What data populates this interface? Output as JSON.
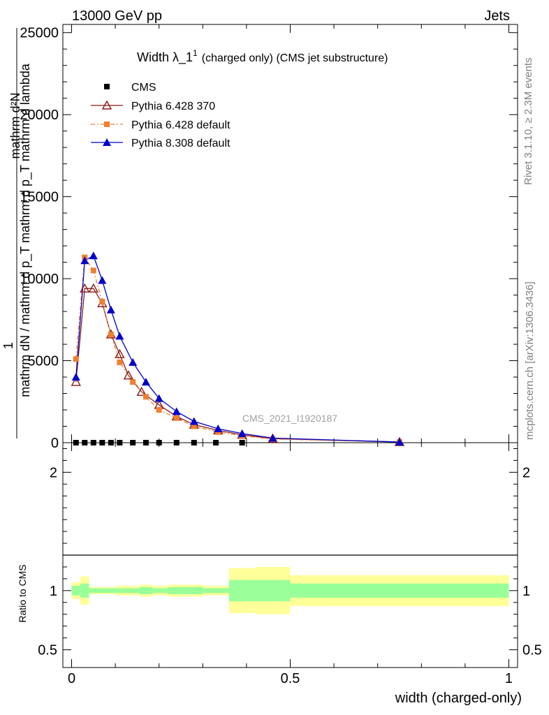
{
  "header": {
    "left": "13000 GeV pp",
    "right": "Jets"
  },
  "side": {
    "rivet": "Rivet 3.1.10, ≥ 2.3M events",
    "mcplots": "mcplots.cern.ch [arXiv:1306.3436]"
  },
  "watermark": "CMS_2021_I1920187",
  "chart_data": [
    {
      "type": "line",
      "title_main": "Width λ_1",
      "title_sup": "1",
      "title_rest": "(charged only) (CMS jet substructure)",
      "xlabel": "width (charged-only)",
      "ylabel_lines": [
        "1",
        "mathrm dN / mathrm d p_T mathrm d p_T mathrm d lambda",
        "mathrm d²N"
      ],
      "xlim": [
        -0.02,
        1.02
      ],
      "ylim": [
        0,
        25500
      ],
      "yticks": [
        0,
        5000,
        10000,
        15000,
        20000,
        25000
      ],
      "ytick_labels": [
        "0",
        "5000",
        "10000",
        "15000",
        "20000",
        "25000"
      ],
      "legend_position": "top-left",
      "series": [
        {
          "name": "CMS",
          "color": "#000000",
          "marker": "square",
          "x": [
            0.01,
            0.03,
            0.05,
            0.07,
            0.09,
            0.11,
            0.14,
            0.17,
            0.2,
            0.24,
            0.28,
            0.33,
            0.39
          ],
          "y": [
            0,
            0,
            0,
            0,
            0,
            0,
            0,
            0,
            0,
            0,
            0,
            0,
            0
          ]
        },
        {
          "name": "Pythia 6.428 370",
          "color": "#8b1a1a",
          "marker": "open-triangle",
          "dash": "",
          "x": [
            0.01,
            0.03,
            0.05,
            0.07,
            0.09,
            0.11,
            0.13,
            0.16,
            0.2,
            0.24,
            0.28,
            0.335,
            0.39,
            0.46,
            0.75
          ],
          "y": [
            3700,
            9400,
            9400,
            8500,
            6600,
            5400,
            4100,
            3100,
            2300,
            1600,
            1100,
            750,
            480,
            250,
            40
          ]
        },
        {
          "name": "Pythia 6.428 default",
          "color": "#f07f30",
          "marker": "square",
          "dash": "6,3,2,3",
          "x": [
            0.01,
            0.03,
            0.05,
            0.07,
            0.09,
            0.11,
            0.14,
            0.17,
            0.2,
            0.24,
            0.28,
            0.335,
            0.39,
            0.46,
            0.75
          ],
          "y": [
            5100,
            11300,
            10500,
            8600,
            6600,
            4900,
            3700,
            2800,
            2000,
            1500,
            1000,
            650,
            420,
            220,
            40
          ]
        },
        {
          "name": "Pythia 8.308 default",
          "color": "#0000cc",
          "marker": "triangle",
          "dash": "",
          "x": [
            0.01,
            0.03,
            0.05,
            0.07,
            0.09,
            0.11,
            0.14,
            0.17,
            0.2,
            0.24,
            0.28,
            0.335,
            0.39,
            0.46,
            0.75
          ],
          "y": [
            4000,
            11100,
            11400,
            9900,
            8100,
            6500,
            4900,
            3700,
            2700,
            1900,
            1300,
            850,
            560,
            280,
            40
          ]
        }
      ]
    },
    {
      "type": "area",
      "ylabel": "Ratio to CMS",
      "xlim": [
        -0.02,
        1.02
      ],
      "ylim": [
        0.35,
        2.25
      ],
      "xticks": [
        0,
        0.5,
        1
      ],
      "xtick_labels": [
        "0",
        "0.5",
        "1"
      ],
      "yticks": [
        0.5,
        1,
        2
      ],
      "ytick_labels": [
        "0.5",
        "1",
        "2"
      ],
      "reference_line": 1,
      "bands": [
        {
          "x0": 0.0,
          "x1": 0.02,
          "stat": 0.04,
          "total": 0.07
        },
        {
          "x0": 0.02,
          "x1": 0.04,
          "stat": 0.06,
          "total": 0.12
        },
        {
          "x0": 0.04,
          "x1": 0.06,
          "stat": 0.02,
          "total": 0.03
        },
        {
          "x0": 0.06,
          "x1": 0.08,
          "stat": 0.02,
          "total": 0.03
        },
        {
          "x0": 0.08,
          "x1": 0.1,
          "stat": 0.02,
          "total": 0.03
        },
        {
          "x0": 0.1,
          "x1": 0.12,
          "stat": 0.02,
          "total": 0.04
        },
        {
          "x0": 0.12,
          "x1": 0.155,
          "stat": 0.02,
          "total": 0.04
        },
        {
          "x0": 0.155,
          "x1": 0.185,
          "stat": 0.03,
          "total": 0.05
        },
        {
          "x0": 0.185,
          "x1": 0.22,
          "stat": 0.02,
          "total": 0.04
        },
        {
          "x0": 0.22,
          "x1": 0.26,
          "stat": 0.03,
          "total": 0.05
        },
        {
          "x0": 0.26,
          "x1": 0.3,
          "stat": 0.03,
          "total": 0.05
        },
        {
          "x0": 0.3,
          "x1": 0.36,
          "stat": 0.02,
          "total": 0.04
        },
        {
          "x0": 0.36,
          "x1": 0.42,
          "stat": 0.09,
          "total": 0.19
        },
        {
          "x0": 0.42,
          "x1": 0.5,
          "stat": 0.09,
          "total": 0.2
        },
        {
          "x0": 0.5,
          "x1": 1.0,
          "stat": 0.06,
          "total": 0.13
        }
      ]
    }
  ]
}
